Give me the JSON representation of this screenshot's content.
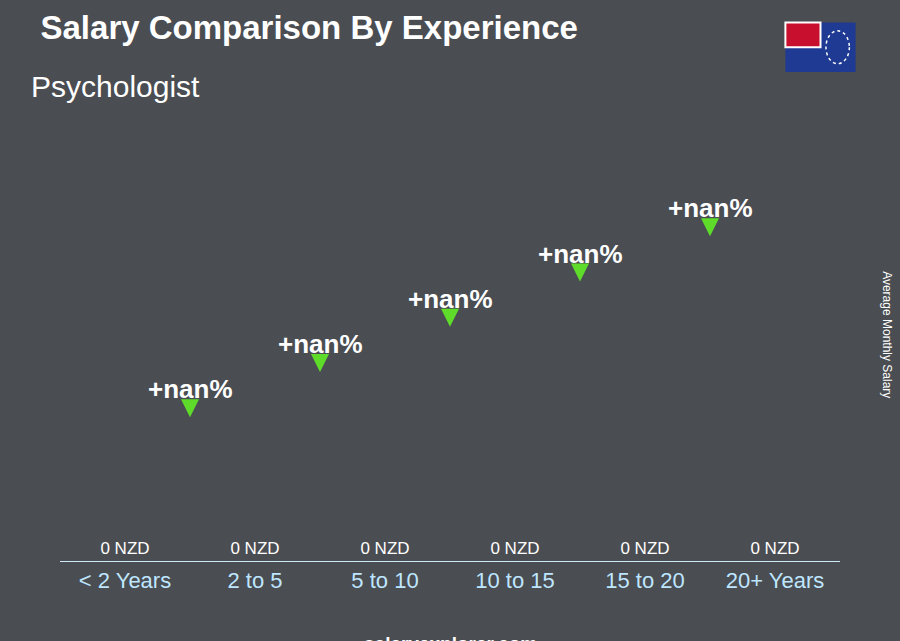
{
  "chart_data": {
    "type": "bar",
    "title": "Salary Comparison By Experience",
    "subtitle": "Psychologist",
    "y_label": "Average Monthly Salary",
    "categories": [
      "< 2 Years",
      "2 to 5",
      "5 to 10",
      "10 to 15",
      "15 to 20",
      "20+ Years"
    ],
    "values": [
      0,
      0,
      0,
      0,
      0,
      0
    ],
    "value_labels": [
      "0 NZD",
      "0 NZD",
      "0 NZD",
      "0 NZD",
      "0 NZD",
      "0 NZD"
    ],
    "data_labels": true,
    "annotations": [
      "+nan%",
      "+nan%",
      "+nan%",
      "+nan%",
      "+nan%"
    ],
    "footer": "salaryexplorer.com",
    "color": "#1aa7ec",
    "ylim": [
      0,
      1
    ],
    "tick_labels": "x",
    "grid": false
  }
}
